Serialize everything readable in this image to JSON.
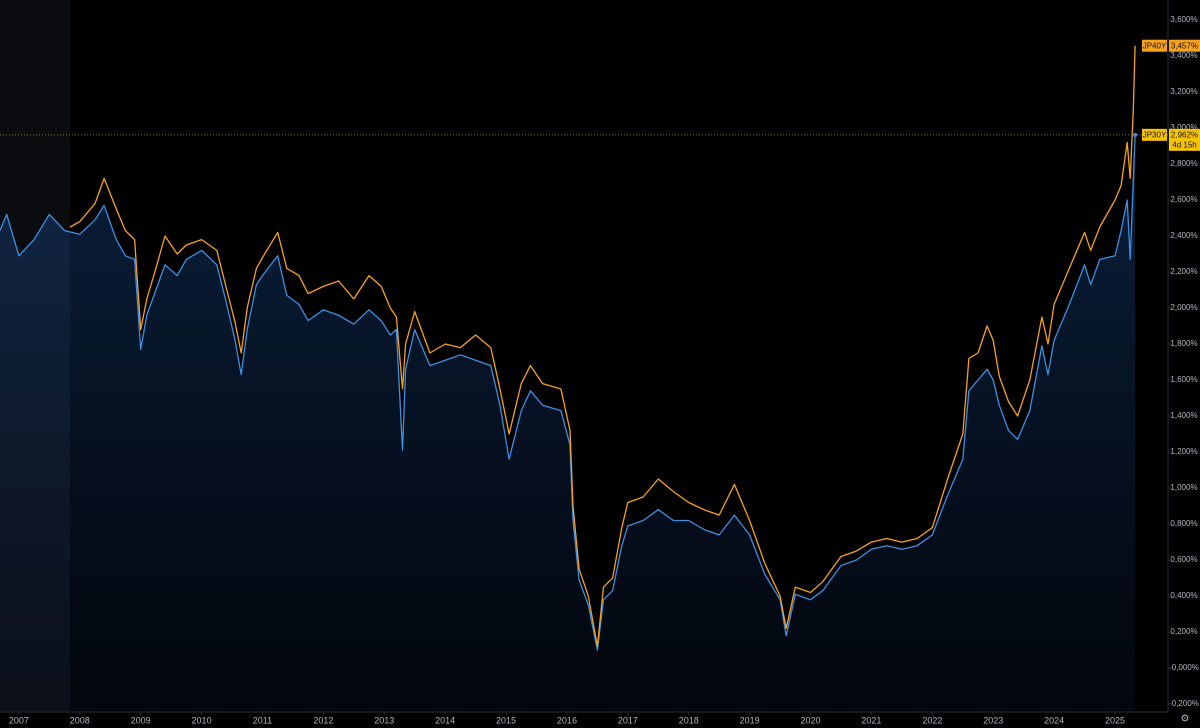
{
  "chart_data": {
    "type": "line",
    "xlim": [
      2006.69,
      2025.87
    ],
    "xticks": [
      2007,
      2008,
      2009,
      2010,
      2011,
      2012,
      2013,
      2014,
      2015,
      2016,
      2017,
      2018,
      2019,
      2020,
      2021,
      2022,
      2023,
      2024,
      2025
    ],
    "ylim": [
      -0.244,
      3.711
    ],
    "yticks": [
      {
        "value": 3.6,
        "label": "3,600%"
      },
      {
        "value": 3.4,
        "label": "3,400%"
      },
      {
        "value": 3.2,
        "label": "3,200%"
      },
      {
        "value": 3.0,
        "label": "3,000%"
      },
      {
        "value": 2.8,
        "label": "2,800%"
      },
      {
        "value": 2.6,
        "label": "2,600%"
      },
      {
        "value": 2.4,
        "label": "2,400%"
      },
      {
        "value": 2.2,
        "label": "2,200%"
      },
      {
        "value": 2.0,
        "label": "2,000%"
      },
      {
        "value": 1.8,
        "label": "1,800%"
      },
      {
        "value": 1.6,
        "label": "1,600%"
      },
      {
        "value": 1.4,
        "label": "1,400%"
      },
      {
        "value": 1.2,
        "label": "1,200%"
      },
      {
        "value": 1.0,
        "label": "1,000%"
      },
      {
        "value": 0.8,
        "label": "0,800%"
      },
      {
        "value": 0.6,
        "label": "0,600%"
      },
      {
        "value": 0.4,
        "label": "0,400%"
      },
      {
        "value": 0.2,
        "label": "0,200%"
      },
      {
        "value": 0,
        "label": "-0,000%"
      },
      {
        "value": -0.2,
        "label": "-0,200%"
      }
    ],
    "grid": false,
    "series": [
      {
        "name": "JP30Y",
        "color": "#3d8fe3",
        "area": true,
        "end_label": "2,962%",
        "countdown": "4d 15h",
        "x": [
          2006.69,
          2006.8,
          2007.0,
          2007.25,
          2007.5,
          2007.75,
          2008.0,
          2008.25,
          2008.4,
          2008.6,
          2008.75,
          2008.9,
          2009.0,
          2009.1,
          2009.25,
          2009.4,
          2009.6,
          2009.75,
          2010.0,
          2010.25,
          2010.4,
          2010.55,
          2010.65,
          2010.75,
          2010.9,
          2011.0,
          2011.25,
          2011.4,
          2011.6,
          2011.75,
          2012.0,
          2012.25,
          2012.5,
          2012.75,
          2012.95,
          2013.1,
          2013.2,
          2013.3,
          2013.35,
          2013.5,
          2013.75,
          2014.0,
          2014.25,
          2014.5,
          2014.75,
          2014.9,
          2015.05,
          2015.25,
          2015.4,
          2015.6,
          2015.9,
          2016.05,
          2016.1,
          2016.2,
          2016.35,
          2016.5,
          2016.6,
          2016.75,
          2016.9,
          2017.0,
          2017.25,
          2017.5,
          2017.75,
          2018.0,
          2018.25,
          2018.5,
          2018.75,
          2019.0,
          2019.25,
          2019.5,
          2019.6,
          2019.75,
          2020.0,
          2020.2,
          2020.5,
          2020.75,
          2021.0,
          2021.25,
          2021.5,
          2021.75,
          2022.0,
          2022.25,
          2022.5,
          2022.6,
          2022.75,
          2022.9,
          2023.0,
          2023.1,
          2023.25,
          2023.4,
          2023.6,
          2023.8,
          2023.9,
          2024.0,
          2024.25,
          2024.5,
          2024.6,
          2024.75,
          2025.0,
          2025.1,
          2025.2,
          2025.25,
          2025.3,
          2025.33
        ],
        "values": [
          2.43,
          2.52,
          2.29,
          2.38,
          2.52,
          2.43,
          2.41,
          2.49,
          2.57,
          2.38,
          2.29,
          2.27,
          1.77,
          1.96,
          2.1,
          2.24,
          2.18,
          2.27,
          2.32,
          2.24,
          2.04,
          1.82,
          1.63,
          1.88,
          2.13,
          2.18,
          2.29,
          2.07,
          2.02,
          1.93,
          1.99,
          1.96,
          1.91,
          1.99,
          1.93,
          1.85,
          1.88,
          1.21,
          1.66,
          1.88,
          1.68,
          1.71,
          1.74,
          1.71,
          1.68,
          1.46,
          1.16,
          1.43,
          1.54,
          1.46,
          1.43,
          1.24,
          0.82,
          0.49,
          0.35,
          0.1,
          0.38,
          0.43,
          0.68,
          0.79,
          0.82,
          0.88,
          0.82,
          0.82,
          0.77,
          0.74,
          0.85,
          0.74,
          0.52,
          0.38,
          0.18,
          0.41,
          0.38,
          0.43,
          0.57,
          0.6,
          0.66,
          0.68,
          0.66,
          0.68,
          0.74,
          0.96,
          1.16,
          1.54,
          1.6,
          1.66,
          1.6,
          1.46,
          1.32,
          1.27,
          1.43,
          1.79,
          1.63,
          1.82,
          2.02,
          2.24,
          2.13,
          2.27,
          2.29,
          2.43,
          2.6,
          2.27,
          2.71,
          2.962
        ]
      },
      {
        "name": "JP40Y",
        "color": "#f7a21b",
        "area": false,
        "end_label": "3,457%",
        "x": [
          2007.84,
          2008.0,
          2008.25,
          2008.4,
          2008.6,
          2008.75,
          2008.9,
          2009.0,
          2009.1,
          2009.25,
          2009.4,
          2009.6,
          2009.75,
          2010.0,
          2010.25,
          2010.4,
          2010.55,
          2010.65,
          2010.75,
          2010.9,
          2011.0,
          2011.25,
          2011.4,
          2011.6,
          2011.75,
          2012.0,
          2012.25,
          2012.5,
          2012.75,
          2012.95,
          2013.1,
          2013.2,
          2013.3,
          2013.35,
          2013.5,
          2013.75,
          2014.0,
          2014.25,
          2014.5,
          2014.75,
          2014.9,
          2015.05,
          2015.25,
          2015.4,
          2015.6,
          2015.9,
          2016.05,
          2016.1,
          2016.2,
          2016.35,
          2016.5,
          2016.6,
          2016.75,
          2016.9,
          2017.0,
          2017.25,
          2017.5,
          2017.75,
          2018.0,
          2018.25,
          2018.5,
          2018.75,
          2019.0,
          2019.25,
          2019.5,
          2019.6,
          2019.75,
          2020.0,
          2020.2,
          2020.5,
          2020.75,
          2021.0,
          2021.25,
          2021.5,
          2021.75,
          2022.0,
          2022.25,
          2022.5,
          2022.6,
          2022.75,
          2022.9,
          2023.0,
          2023.1,
          2023.25,
          2023.4,
          2023.6,
          2023.8,
          2023.9,
          2024.0,
          2024.25,
          2024.5,
          2024.6,
          2024.75,
          2025.0,
          2025.1,
          2025.2,
          2025.25,
          2025.3,
          2025.33
        ],
        "values": [
          2.45,
          2.48,
          2.58,
          2.72,
          2.55,
          2.43,
          2.38,
          1.88,
          2.05,
          2.22,
          2.4,
          2.3,
          2.35,
          2.38,
          2.32,
          2.12,
          1.92,
          1.75,
          2.0,
          2.22,
          2.28,
          2.42,
          2.22,
          2.18,
          2.08,
          2.12,
          2.15,
          2.05,
          2.18,
          2.12,
          2.0,
          1.95,
          1.55,
          1.8,
          1.98,
          1.75,
          1.8,
          1.78,
          1.85,
          1.78,
          1.55,
          1.3,
          1.58,
          1.68,
          1.58,
          1.55,
          1.32,
          0.9,
          0.55,
          0.4,
          0.12,
          0.45,
          0.5,
          0.78,
          0.92,
          0.95,
          1.05,
          0.98,
          0.92,
          0.88,
          0.85,
          1.02,
          0.82,
          0.58,
          0.4,
          0.22,
          0.45,
          0.42,
          0.48,
          0.62,
          0.65,
          0.7,
          0.72,
          0.7,
          0.72,
          0.78,
          1.05,
          1.3,
          1.72,
          1.75,
          1.9,
          1.82,
          1.62,
          1.48,
          1.4,
          1.6,
          1.95,
          1.8,
          2.02,
          2.22,
          2.42,
          2.32,
          2.45,
          2.6,
          2.68,
          2.92,
          2.72,
          3.1,
          3.457
        ]
      }
    ]
  }
}
